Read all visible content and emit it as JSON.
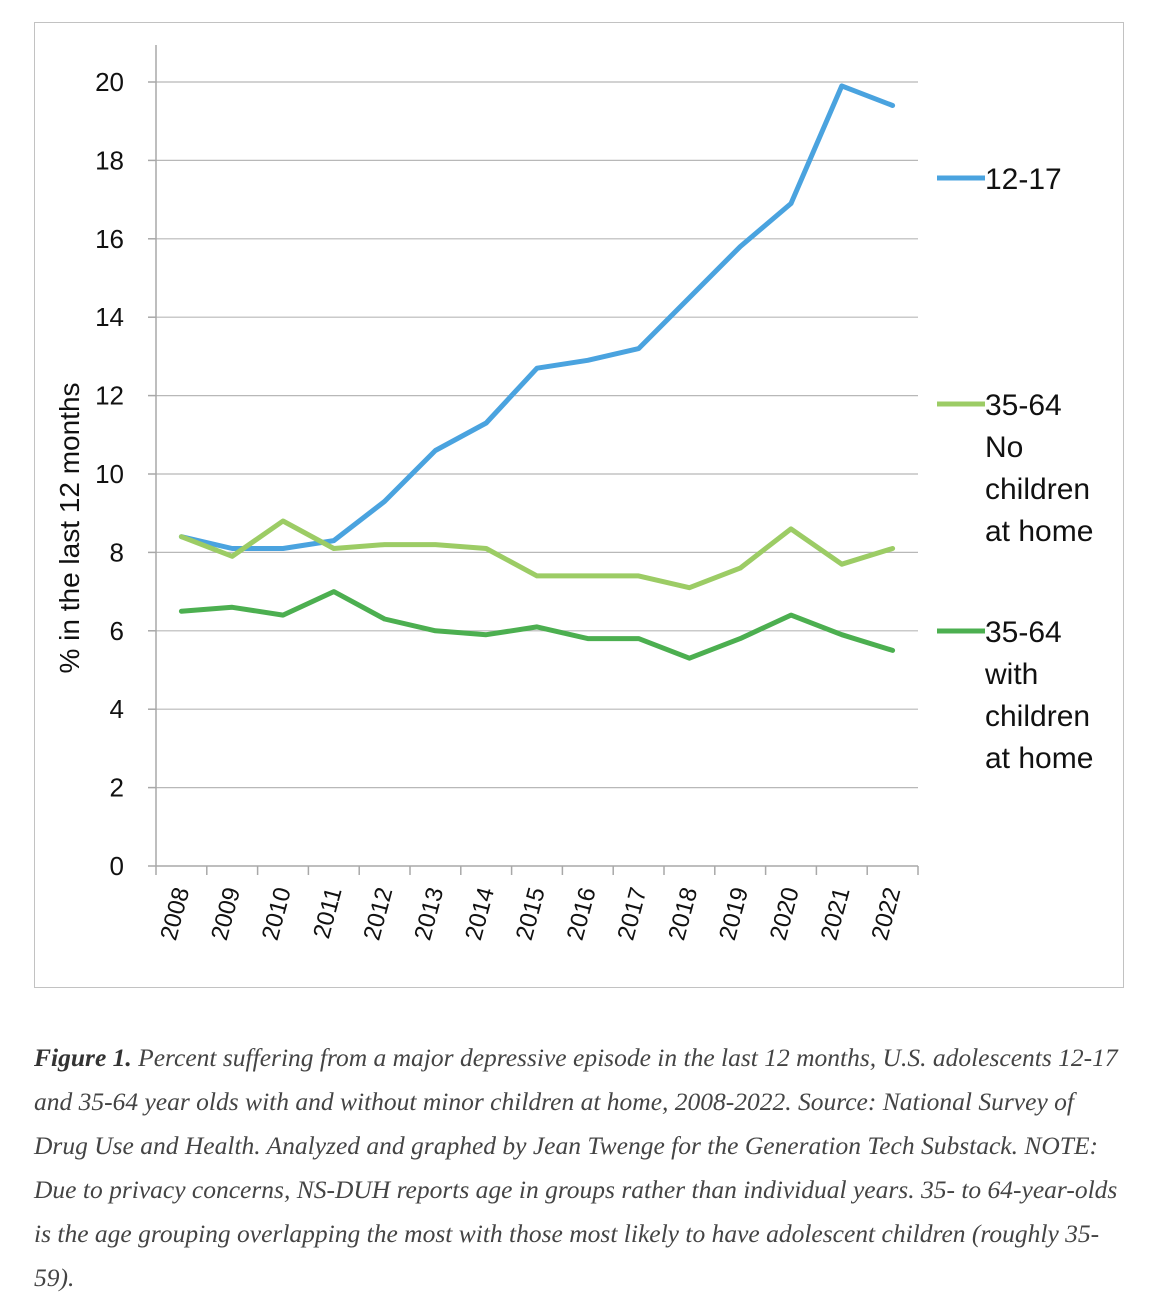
{
  "chart_data": {
    "type": "line",
    "ylabel": "% in the last 12 months",
    "xlabel": "",
    "ylim": [
      0,
      20
    ],
    "yticks": [
      "0",
      "2",
      "4",
      "6",
      "8",
      "10",
      "12",
      "14",
      "16",
      "18",
      "20"
    ],
    "categories": [
      "2008",
      "2009",
      "2010",
      "2011",
      "2012",
      "2013",
      "2014",
      "2015",
      "2016",
      "2017",
      "2018",
      "2019",
      "2020",
      "2021",
      "2022"
    ],
    "grid": "horizontal",
    "legend_position": "right",
    "series": [
      {
        "name": "12-17",
        "legend_lines": [
          "12-17"
        ],
        "color": "#4aa3df",
        "values": [
          8.4,
          8.1,
          8.1,
          8.3,
          9.3,
          10.6,
          11.3,
          12.7,
          12.9,
          13.2,
          14.5,
          15.8,
          16.9,
          19.9,
          19.4
        ]
      },
      {
        "name": "35-64 No children at home",
        "legend_lines": [
          "35-64",
          "No",
          "children",
          "at home"
        ],
        "color": "#9ccc65",
        "values": [
          8.4,
          7.9,
          8.8,
          8.1,
          8.2,
          8.2,
          8.1,
          7.4,
          7.4,
          7.4,
          7.1,
          7.6,
          8.6,
          7.7,
          8.1
        ]
      },
      {
        "name": "35-64 with children at home",
        "legend_lines": [
          "35-64",
          "with",
          "children",
          "at home"
        ],
        "color": "#4caf50",
        "values": [
          6.5,
          6.6,
          6.4,
          7.0,
          6.3,
          6.0,
          5.9,
          6.1,
          5.8,
          5.8,
          5.3,
          5.8,
          6.4,
          5.9,
          5.5
        ]
      }
    ]
  },
  "caption": {
    "label": "Figure 1.",
    "text": "Percent suffering from a major depressive episode in the last 12 months, U.S. adolescents 12-17 and 35-64 year olds with and without minor children at home, 2008-2022. Source: National Survey of Drug Use and Health. Analyzed and graphed by Jean Twenge for the Generation Tech Substack. NOTE: Due to privacy concerns, NS-DUH reports age in groups rather than individual years. 35- to 64-year-olds is the age grouping overlapping the most with those most likely to have adolescent children (roughly 35-59)."
  }
}
